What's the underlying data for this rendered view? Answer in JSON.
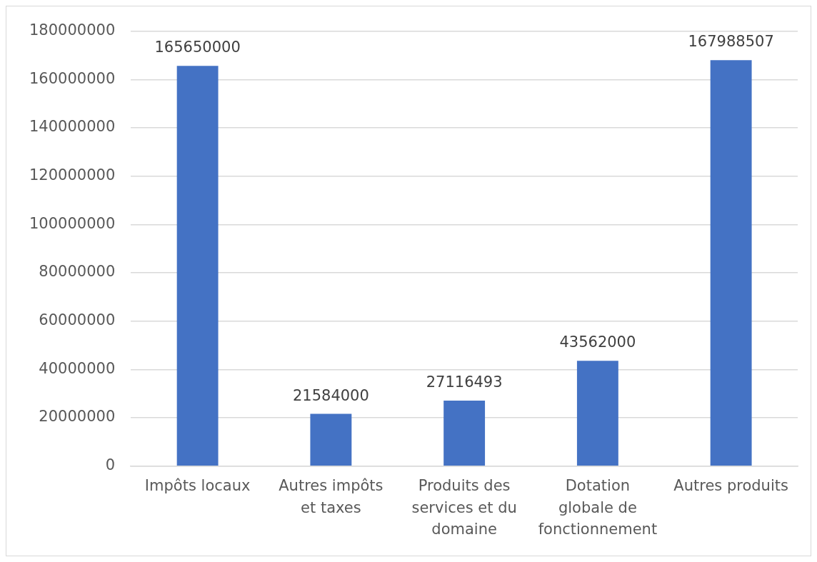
{
  "chart_data": {
    "type": "bar",
    "categories": [
      "Impôts locaux",
      "Autres impôts et taxes",
      "Produits des services et du domaine",
      "Dotation globale de fonctionnement",
      "Autres produits"
    ],
    "values": [
      165650000,
      21584000,
      27116493,
      43562000,
      167988507
    ],
    "color": "#4472c4",
    "ylim": [
      0,
      180000000
    ],
    "yticks": [
      0,
      20000000,
      40000000,
      60000000,
      80000000,
      100000000,
      120000000,
      140000000,
      160000000,
      180000000
    ],
    "grid": "y",
    "data_labels": true,
    "legend": false
  }
}
